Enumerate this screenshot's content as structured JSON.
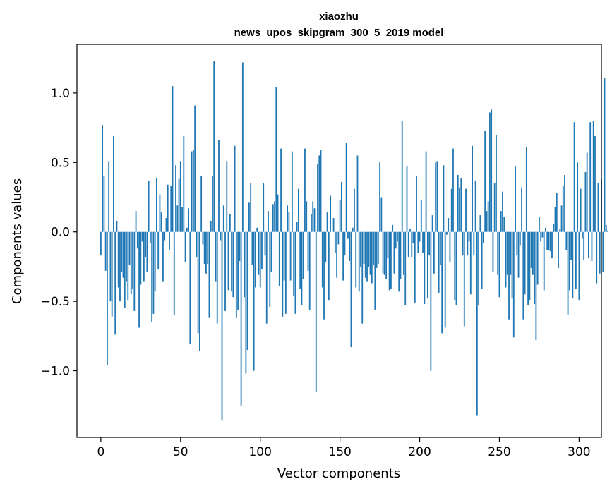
{
  "chart_data": {
    "type": "bar",
    "title": "xiaozhu",
    "subtitle": "news_upos_skipgram_300_5_2019 model",
    "xlabel": "Vector components",
    "ylabel": "Components values",
    "xlim": [
      -15,
      314
    ],
    "ylim": [
      -1.48,
      1.35
    ],
    "xticks": [
      0,
      50,
      100,
      150,
      200,
      250,
      300
    ],
    "xtick_labels": [
      "0",
      "50",
      "100",
      "150",
      "200",
      "250",
      "300"
    ],
    "yticks": [
      -1.0,
      -0.5,
      0.0,
      0.5,
      1.0
    ],
    "ytick_labels": [
      "−1.0",
      "−0.5",
      "0.0",
      "0.5",
      "1.0"
    ],
    "bar_color": "#1f77b4",
    "values": [
      -0.17,
      0.77,
      0.4,
      -0.28,
      -0.96,
      0.51,
      -0.5,
      -0.61,
      0.69,
      -0.74,
      0.08,
      -0.4,
      -0.5,
      -0.29,
      -0.33,
      -0.55,
      -0.36,
      -0.49,
      -0.24,
      -0.45,
      -0.41,
      -0.57,
      0.15,
      -0.12,
      -0.69,
      -0.38,
      -0.07,
      -0.36,
      -0.18,
      -0.29,
      0.37,
      -0.08,
      -0.65,
      -0.59,
      -0.43,
      0.39,
      -0.27,
      0.27,
      0.14,
      -0.36,
      -0.06,
      0.1,
      0.34,
      -0.13,
      0.33,
      1.05,
      -0.6,
      0.48,
      0.19,
      0.38,
      0.51,
      0.18,
      0.69,
      -0.22,
      0.03,
      0.17,
      -0.81,
      0.58,
      0.59,
      0.91,
      -0.18,
      -0.73,
      -0.86,
      0.4,
      -0.09,
      -0.23,
      -0.3,
      -0.23,
      -0.62,
      0.08,
      0.4,
      1.23,
      -0.36,
      -0.66,
      0.66,
      -0.06,
      -1.36,
      0.19,
      -0.57,
      0.51,
      -0.42,
      0.13,
      -0.43,
      -0.47,
      0.62,
      -0.62,
      -0.56,
      -0.21,
      -1.25,
      1.22,
      -0.47,
      -1.02,
      -0.85,
      0.21,
      0.35,
      -0.24,
      -1.0,
      -0.4,
      0.03,
      -0.31,
      -0.4,
      -0.27,
      0.35,
      -0.17,
      -0.66,
      0.15,
      -0.54,
      -0.29,
      0.2,
      0.22,
      1.04,
      0.27,
      -0.39,
      0.6,
      -0.61,
      -0.35,
      -0.59,
      0.19,
      0.14,
      -0.35,
      0.58,
      -0.46,
      -0.59,
      0.07,
      0.31,
      -0.41,
      -0.53,
      -0.34,
      0.6,
      0.22,
      -0.28,
      -0.56,
      0.13,
      0.22,
      0.17,
      -1.15,
      0.49,
      0.55,
      0.59,
      -0.4,
      -0.63,
      -0.22,
      0.14,
      -0.49,
      0.26,
      0.0,
      0.1,
      -0.15,
      -0.33,
      -0.09,
      0.23,
      0.36,
      -0.35,
      -0.17,
      0.64,
      -0.05,
      -0.21,
      -0.83,
      0.03,
      0.31,
      -0.4,
      0.55,
      -0.43,
      -0.25,
      -0.66,
      -0.23,
      -0.33,
      -0.36,
      -0.25,
      -0.31,
      -0.37,
      -0.24,
      -0.56,
      -0.26,
      -0.23,
      0.5,
      0.25,
      -0.3,
      -0.31,
      -0.34,
      -0.19,
      -0.42,
      -0.41,
      0.05,
      -0.3,
      -0.12,
      -0.07,
      -0.43,
      -0.34,
      0.8,
      -0.31,
      -0.53,
      0.47,
      -0.18,
      0.02,
      -0.18,
      -0.08,
      -0.51,
      0.4,
      -0.15,
      -0.07,
      0.23,
      -0.15,
      -0.52,
      0.58,
      -0.48,
      -0.17,
      -1.0,
      0.12,
      -0.3,
      0.5,
      0.51,
      -0.44,
      -0.24,
      -0.73,
      0.48,
      -0.69,
      -0.02,
      0.1,
      -0.22,
      0.31,
      0.6,
      -0.49,
      -0.53,
      0.41,
      0.32,
      0.39,
      -0.17,
      -0.68,
      0.31,
      -0.17,
      -0.07,
      -0.45,
      0.62,
      -0.17,
      0.37,
      -1.32,
      -0.53,
      0.12,
      -0.41,
      -0.08,
      0.73,
      0.15,
      0.22,
      0.86,
      0.88,
      -0.29,
      0.35,
      0.7,
      -0.31,
      -0.47,
      0.15,
      0.29,
      0.11,
      -0.4,
      -0.31,
      -0.63,
      -0.31,
      -0.48,
      -0.76,
      0.47,
      -0.17,
      -0.33,
      -0.1,
      0.32,
      -0.63,
      -0.45,
      0.61,
      -0.53,
      -0.49,
      -0.26,
      -0.31,
      -0.52,
      -0.78,
      -0.38,
      0.11,
      -0.07,
      -0.04,
      -0.42,
      0.03,
      -0.13,
      -0.13,
      -0.14,
      -0.19,
      0.06,
      0.18,
      0.28,
      -0.26,
      0.02,
      0.19,
      0.33,
      0.41,
      -0.13,
      -0.6,
      -0.42,
      -0.2,
      -0.48,
      0.79,
      -0.41,
      0.5,
      -0.49,
      0.31,
      -0.05,
      -0.2,
      0.43,
      0.57,
      -0.19,
      0.79,
      -0.21,
      0.8,
      0.69,
      -0.37,
      0.35,
      -0.3,
      0.38,
      -0.29,
      1.11,
      0.05,
      0.01
    ]
  }
}
